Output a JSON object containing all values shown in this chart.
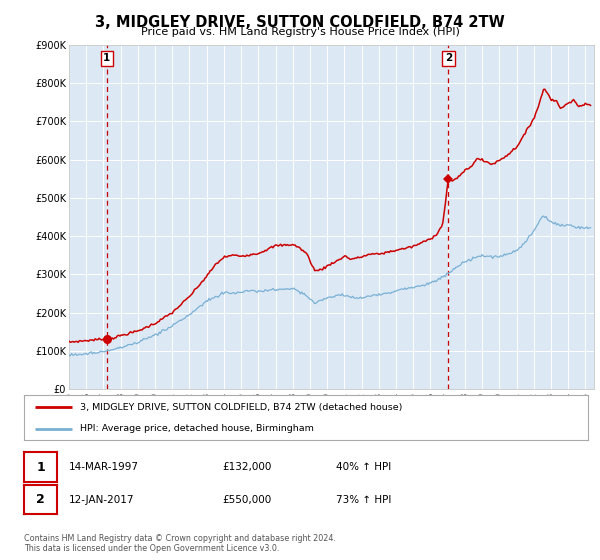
{
  "title": "3, MIDGLEY DRIVE, SUTTON COLDFIELD, B74 2TW",
  "subtitle": "Price paid vs. HM Land Registry's House Price Index (HPI)",
  "legend_line1": "3, MIDGLEY DRIVE, SUTTON COLDFIELD, B74 2TW (detached house)",
  "legend_line2": "HPI: Average price, detached house, Birmingham",
  "transaction1_date": "14-MAR-1997",
  "transaction1_price": "£132,000",
  "transaction1_hpi": "40% ↑ HPI",
  "transaction2_date": "12-JAN-2017",
  "transaction2_price": "£550,000",
  "transaction2_hpi": "73% ↑ HPI",
  "footer1": "Contains HM Land Registry data © Crown copyright and database right 2024.",
  "footer2": "This data is licensed under the Open Government Licence v3.0.",
  "plot_bg_color": "#dce9f5",
  "red_color": "#cc0000",
  "blue_color": "#7ab0d4",
  "marker1_date_num": 1997.2,
  "marker1_price": 132000,
  "marker2_date_num": 2017.04,
  "marker2_price": 550000,
  "xmin": 1995.0,
  "xmax": 2025.5,
  "ymin": 0,
  "ymax": 900000,
  "yticks": [
    0,
    100000,
    200000,
    300000,
    400000,
    500000,
    600000,
    700000,
    800000,
    900000
  ],
  "ytick_labels": [
    "£0",
    "£100K",
    "£200K",
    "£300K",
    "£400K",
    "£500K",
    "£600K",
    "£700K",
    "£800K",
    "£900K"
  ],
  "xticks": [
    1995,
    1996,
    1997,
    1998,
    1999,
    2000,
    2001,
    2002,
    2003,
    2004,
    2005,
    2006,
    2007,
    2008,
    2009,
    2010,
    2011,
    2012,
    2013,
    2014,
    2015,
    2016,
    2017,
    2018,
    2019,
    2020,
    2021,
    2022,
    2023,
    2024,
    2025
  ]
}
